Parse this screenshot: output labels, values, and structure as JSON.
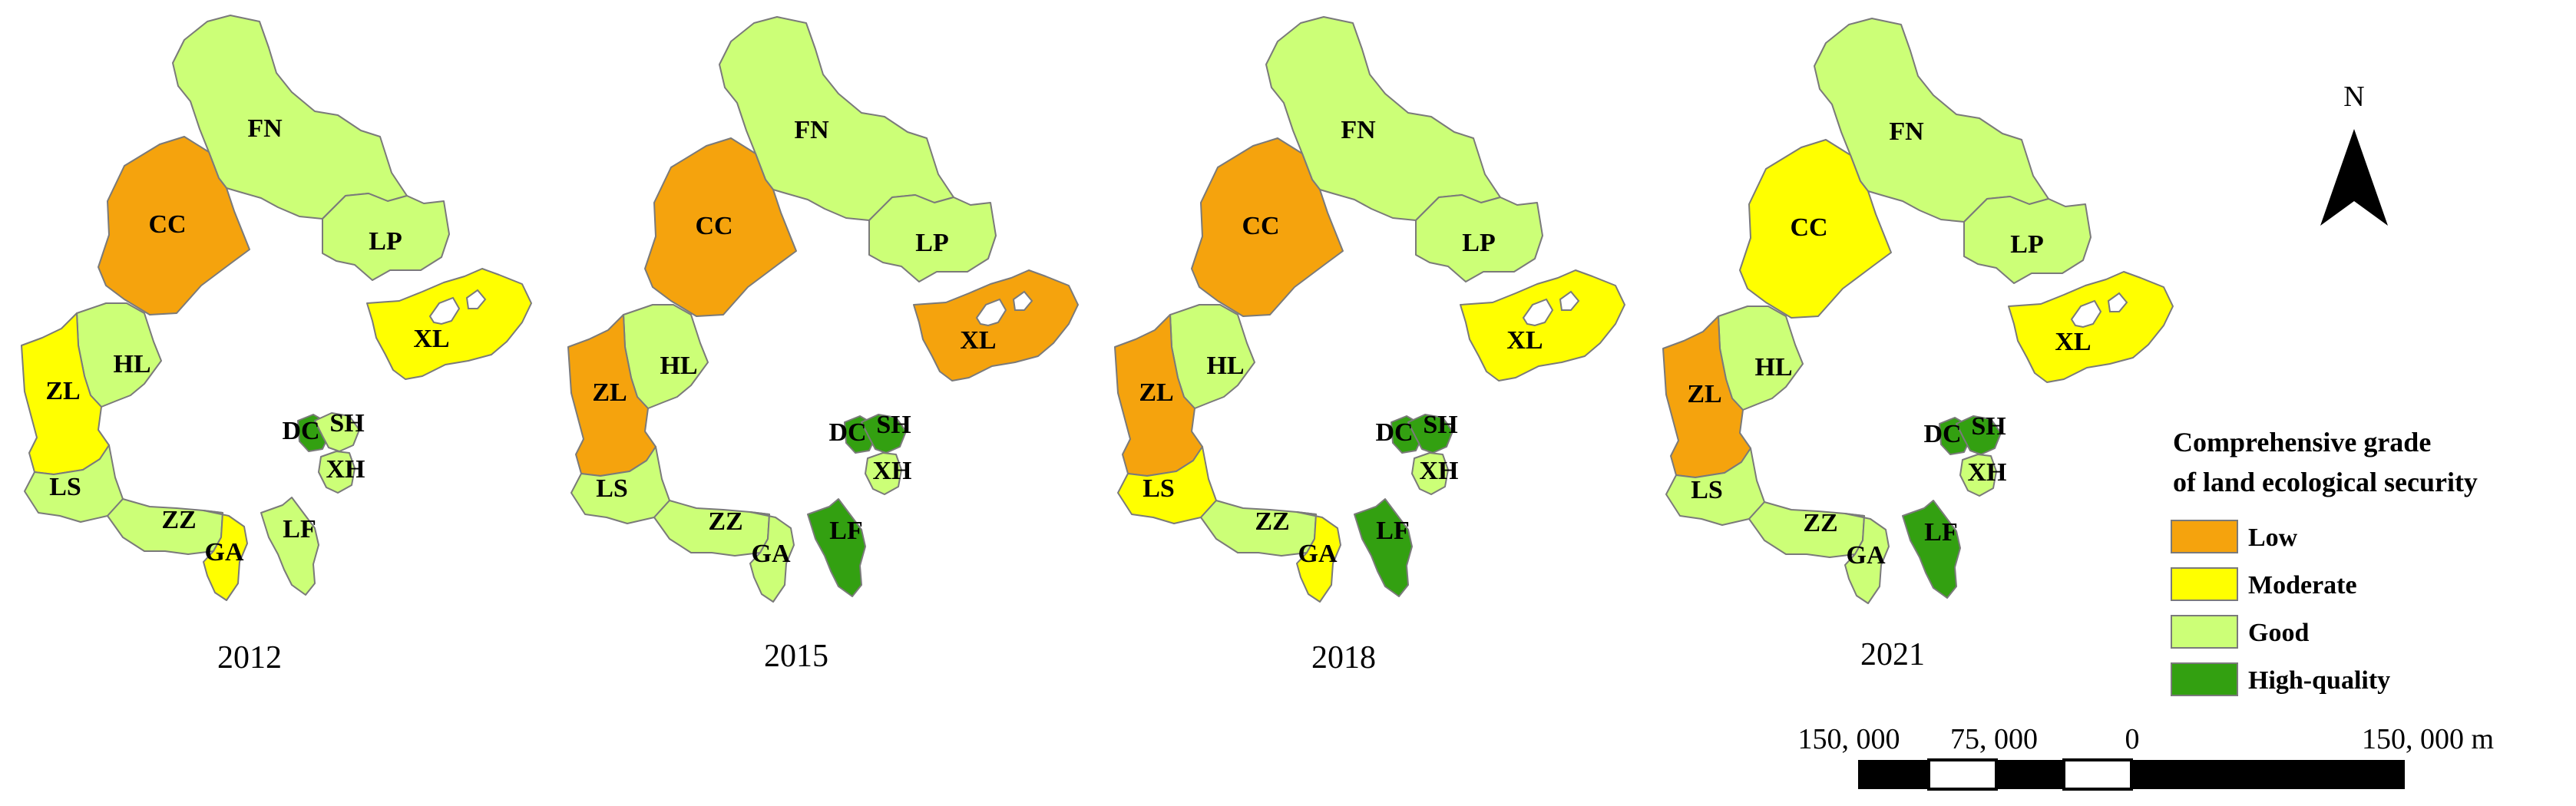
{
  "colors": {
    "Low": "#f5a30d",
    "Moderate": "#ffff00",
    "Good": "#ccff77",
    "High-quality": "#33a011"
  },
  "legend": {
    "title_line1": "Comprehensive grade",
    "title_line2": "of land ecological security",
    "items": [
      {
        "label": "Low",
        "grade": "Low"
      },
      {
        "label": "Moderate",
        "grade": "Moderate"
      },
      {
        "label": "Good",
        "grade": "Good"
      },
      {
        "label": "High-quality",
        "grade": "High-quality"
      }
    ]
  },
  "north_arrow": {
    "label": "N"
  },
  "scale_bar": {
    "labels": [
      "150, 000",
      "75, 000",
      "0",
      "150, 000 m"
    ]
  },
  "maps": [
    {
      "year": "2012",
      "grades": {
        "FN": "Good",
        "CC": "Low",
        "LP": "Good",
        "XL": "Moderate",
        "HL": "Good",
        "ZL": "Moderate",
        "LS": "Good",
        "ZZ": "Good",
        "GA": "Moderate",
        "LF": "Good",
        "DC": "High-quality",
        "SH": "Good",
        "XH": "Good"
      }
    },
    {
      "year": "2015",
      "grades": {
        "FN": "Good",
        "CC": "Low",
        "LP": "Good",
        "XL": "Low",
        "HL": "Good",
        "ZL": "Low",
        "LS": "Good",
        "ZZ": "Good",
        "GA": "Good",
        "LF": "High-quality",
        "DC": "High-quality",
        "SH": "High-quality",
        "XH": "Good"
      }
    },
    {
      "year": "2018",
      "grades": {
        "FN": "Good",
        "CC": "Low",
        "LP": "Good",
        "XL": "Moderate",
        "HL": "Good",
        "ZL": "Low",
        "LS": "Moderate",
        "ZZ": "Good",
        "GA": "Moderate",
        "LF": "High-quality",
        "DC": "High-quality",
        "SH": "High-quality",
        "XH": "Good"
      }
    },
    {
      "year": "2021",
      "grades": {
        "FN": "Good",
        "CC": "Moderate",
        "LP": "Good",
        "XL": "Moderate",
        "HL": "Good",
        "ZL": "Low",
        "LS": "Good",
        "ZZ": "Good",
        "GA": "Good",
        "LF": "High-quality",
        "DC": "High-quality",
        "SH": "High-quality",
        "XH": "Good"
      }
    }
  ],
  "region_labels": {
    "FN": "FN",
    "CC": "CC",
    "LP": "LP",
    "XL": "XL",
    "HL": "HL",
    "ZL": "ZL",
    "LS": "LS",
    "ZZ": "ZZ",
    "GA": "GA",
    "LF": "LF",
    "DC": "DC",
    "SH": "SH",
    "XH": "XH"
  }
}
